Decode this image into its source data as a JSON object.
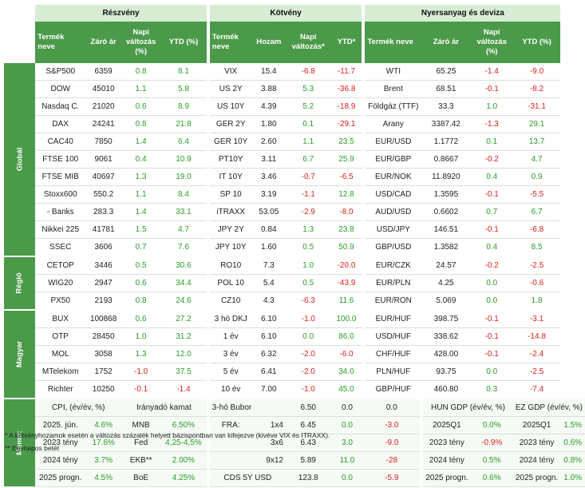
{
  "sections": {
    "equity": "Részvény",
    "bond": "Kötvény",
    "commodity": "Nyersanyag és deviza"
  },
  "columns": {
    "equity": [
      "Termék neve",
      "Záró ár",
      "Napi változás (%)",
      "YTD (%)"
    ],
    "bond": [
      "Termék neve",
      "Hozam",
      "Napi változás*",
      "YTD*"
    ],
    "commodity": [
      "Termék neve",
      "Záró ár",
      "Napi változás (%)",
      "YTD (%)"
    ]
  },
  "groups": [
    "Globál",
    "Régió",
    "Magyar",
    "Memo:"
  ],
  "colors": {
    "accent": "#4a9a4a",
    "header_light": "#d8ecd4",
    "positive": "#2a9d2a",
    "negative": "#e02020"
  },
  "rows": [
    {
      "eq": [
        "S&P500",
        "6359",
        "0.8",
        "8.1"
      ],
      "bd": [
        "VIX",
        "15.4",
        "-6.8",
        "-11.7"
      ],
      "cm": [
        "WTI",
        "65.25",
        "-1.4",
        "-9.0"
      ]
    },
    {
      "eq": [
        "DOW",
        "45010",
        "1.1",
        "5.8"
      ],
      "bd": [
        "US 2Y",
        "3.88",
        "5.3",
        "-36.8"
      ],
      "cm": [
        "Brent",
        "68.51",
        "-0.1",
        "-8.2"
      ]
    },
    {
      "eq": [
        "Nasdaq C.",
        "21020",
        "0.6",
        "8.9"
      ],
      "bd": [
        "US 10Y",
        "4.39",
        "5.2",
        "-18.9"
      ],
      "cm": [
        "Földgáz (TTF)",
        "33.3",
        "1.0",
        "-31.1"
      ]
    },
    {
      "eq": [
        "DAX",
        "24241",
        "0.8",
        "21.8"
      ],
      "bd": [
        "GER 2Y",
        "1.80",
        "0.1",
        "-29.1"
      ],
      "cm": [
        "Arany",
        "3387.42",
        "-1.3",
        "29.1"
      ]
    },
    {
      "eq": [
        "CAC40",
        "7850",
        "1.4",
        "6.4"
      ],
      "bd": [
        "GER 10Y",
        "2.60",
        "1.1",
        "23.5"
      ],
      "cm": [
        "EUR/USD",
        "1.1772",
        "0.1",
        "13.7"
      ]
    },
    {
      "eq": [
        "FTSE 100",
        "9061",
        "0.4",
        "10.9"
      ],
      "bd": [
        "PT10Y",
        "3.11",
        "6.7",
        "25.9"
      ],
      "cm": [
        "EUR/GBP",
        "0.8667",
        "-0.2",
        "4.7"
      ]
    },
    {
      "eq": [
        "FTSE MIB",
        "40697",
        "1.3",
        "19.0"
      ],
      "bd": [
        "IT 10Y",
        "3.46",
        "-0.7",
        "-6.5"
      ],
      "cm": [
        "EUR/NOK",
        "11.8920",
        "0.4",
        "0.9"
      ]
    },
    {
      "eq": [
        "Stoxx600",
        "550.2",
        "1.1",
        "8.4"
      ],
      "bd": [
        "SP 10",
        "3.19",
        "-1.1",
        "12.8"
      ],
      "cm": [
        "USD/CAD",
        "1.3595",
        "-0.1",
        "-5.5"
      ]
    },
    {
      "eq": [
        "- Banks",
        "283.3",
        "1.4",
        "33.1"
      ],
      "bd": [
        "iTRAXX",
        "53.05",
        "-2.9",
        "-8.0"
      ],
      "cm": [
        "AUD/USD",
        "0.6602",
        "0.7",
        "6.7"
      ]
    },
    {
      "eq": [
        "Nikkei 225",
        "41781",
        "1.5",
        "4.7"
      ],
      "bd": [
        "JPY 2Y",
        "0.84",
        "1.3",
        "23.8"
      ],
      "cm": [
        "USD/JPY",
        "146.51",
        "-0.1",
        "-6.8"
      ]
    },
    {
      "eq": [
        "SSEC",
        "3606",
        "0.7",
        "7.6"
      ],
      "bd": [
        "JPY 10Y",
        "1.60",
        "0.5",
        "50.9"
      ],
      "cm": [
        "GBP/USD",
        "1.3582",
        "0.4",
        "8.5"
      ]
    },
    {
      "eq": [
        "CETOP",
        "3446",
        "0.5",
        "30.6"
      ],
      "bd": [
        "RO10",
        "7.3",
        "1.0",
        "-20.0"
      ],
      "cm": [
        "EUR/CZK",
        "24.57",
        "-0.2",
        "-2.5"
      ]
    },
    {
      "eq": [
        "WIG20",
        "2947",
        "0.6",
        "34.4"
      ],
      "bd": [
        "POL 10",
        "5.4",
        "0.5",
        "-43.9"
      ],
      "cm": [
        "EUR/PLN",
        "4.25",
        "0.0",
        "-0.6"
      ]
    },
    {
      "eq": [
        "PX50",
        "2193",
        "0.8",
        "24.6"
      ],
      "bd": [
        "CZ10",
        "4.3",
        "-6.3",
        "11.6"
      ],
      "cm": [
        "EUR/RON",
        "5.069",
        "0.0",
        "1.8"
      ]
    },
    {
      "eq": [
        "BUX",
        "100868",
        "0.6",
        "27.2"
      ],
      "bd": [
        "3 hó DKJ",
        "6.10",
        "-1.0",
        "100.0"
      ],
      "cm": [
        "EUR/HUF",
        "398.75",
        "-0.1",
        "-3.1"
      ]
    },
    {
      "eq": [
        "OTP",
        "28450",
        "1.0",
        "31.2"
      ],
      "bd": [
        "1 év",
        "6.10",
        "0.0",
        "86.0"
      ],
      "cm": [
        "USD/HUF",
        "338.62",
        "-0.1",
        "-14.8"
      ]
    },
    {
      "eq": [
        "MOL",
        "3058",
        "1.3",
        "12.0"
      ],
      "bd": [
        "3 év",
        "6.32",
        "-2.0",
        "-6.0"
      ],
      "cm": [
        "CHF/HUF",
        "428.00",
        "-0.1",
        "-2.4"
      ]
    },
    {
      "eq": [
        "MTelekom",
        "1752",
        "-1.0",
        "37.5"
      ],
      "bd": [
        "5 év",
        "6.41",
        "-2.0",
        "34.0"
      ],
      "cm": [
        "PLN/HUF",
        "93.75",
        "0.0",
        "-2.5"
      ]
    },
    {
      "eq": [
        "Richter",
        "10250",
        "-0.1",
        "-1.4"
      ],
      "bd": [
        "10 év",
        "7.00",
        "-1.0",
        "45.0"
      ],
      "cm": [
        "GBP/HUF",
        "460.80",
        "0.3",
        "-7.4"
      ]
    }
  ],
  "memo": {
    "headers": [
      "CPI, (év/év, %)",
      "Irányadó kamat",
      "3-hó Bubor",
      "6.50",
      "0.0",
      "0.0",
      "HUN GDP (év/év, %)",
      "EZ GDP (év/év, %)"
    ],
    "rows": [
      [
        "2025. jún.",
        "4.6%",
        "MNB",
        "6.50%",
        "FRA:",
        "1x4",
        "6.45",
        "0.0",
        "-3.0",
        "2025Q1",
        "0.0%",
        "2025Q1",
        "1.5%"
      ],
      [
        "2023 tény",
        "17.6%",
        "Fed",
        "4,25-4,5%",
        "",
        "3x6",
        "6.43",
        "3.0",
        "-9.0",
        "2023 tény",
        "-0.9%",
        "2023 tény",
        "0.6%"
      ],
      [
        "2024 tény",
        "3.7%",
        "EKB**",
        "2.00%",
        "",
        "9x12",
        "5.89",
        "11.0",
        "-28",
        "2024 tény",
        "0.5%",
        "2024 tény",
        "0.8%"
      ],
      [
        "2025 progn.",
        "4.5%",
        "BoE",
        "4.25%",
        "CDS 5Y USD",
        "",
        "123.8",
        "0.0",
        "-5.9",
        "2025 progn.",
        "0.6%",
        "2025 progn.",
        "1.0%"
      ]
    ]
  },
  "footnotes": [
    "* A kötvényhozamok esetén a változás százalék helyett bázispontban van kifejezve (kivéve VIX és ITRAXX).",
    "** Egynapos betét"
  ]
}
